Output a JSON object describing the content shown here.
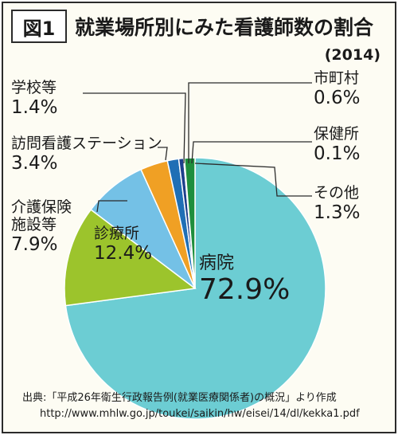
{
  "figure_label": "図1",
  "title": "就業場所別にみた看護師数の割合",
  "year": "(2014)",
  "chart_data": {
    "type": "pie",
    "title": "就業場所別にみた看護師数の割合",
    "subtitle": "(2014)",
    "slices": [
      {
        "label": "病院",
        "label_lines": [
          "病院"
        ],
        "value": 72.9,
        "display": "72.9%",
        "color": "#6ccdd3"
      },
      {
        "label": "診療所",
        "label_lines": [
          "診療所"
        ],
        "value": 12.4,
        "display": "12.4%",
        "color": "#9cc42c"
      },
      {
        "label": "介護保険施設等",
        "label_lines": [
          "介護保険",
          "施設等"
        ],
        "value": 7.9,
        "display": "7.9%",
        "color": "#74c1e6"
      },
      {
        "label": "訪問看護ステーション",
        "label_lines": [
          "訪問看護ステーション"
        ],
        "value": 3.4,
        "display": "3.4%",
        "color": "#f0a024"
      },
      {
        "label": "学校等",
        "label_lines": [
          "学校等"
        ],
        "value": 1.4,
        "display": "1.4%",
        "color": "#1f6fb5"
      },
      {
        "label": "市町村",
        "label_lines": [
          "市町村"
        ],
        "value": 0.6,
        "display": "0.6%",
        "color": "#1d3f8c"
      },
      {
        "label": "保健所",
        "label_lines": [
          "保健所"
        ],
        "value": 0.1,
        "display": "0.1%",
        "color": "#e8e43a"
      },
      {
        "label": "その他",
        "label_lines": [
          "その他"
        ],
        "value": 1.3,
        "display": "1.3%",
        "color": "#1f8e3d"
      }
    ]
  },
  "source": {
    "line1": "出典:「平成26年衛生行政報告例(就業医療関係者)の概況」より作成",
    "line2": "http://www.mhlw.go.jp/toukei/saikin/hw/eisei/14/dl/kekka1.pdf"
  }
}
